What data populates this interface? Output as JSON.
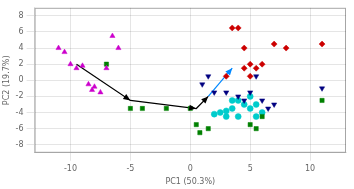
{
  "chart_data": {
    "type": "scatter",
    "xlabel": "PC1 (50.3%)",
    "ylabel": "PC2 (19.7%)",
    "xlim": [
      -13,
      13
    ],
    "ylim": [
      -9,
      9
    ],
    "xticks": [
      -10,
      -5,
      0,
      5,
      10
    ],
    "yticks": [
      -8,
      -6,
      -4,
      -2,
      0,
      2,
      4,
      6,
      8
    ],
    "grid": true,
    "series": [
      {
        "color": "#cc00cc",
        "marker": "triangle",
        "x": [
          -11,
          -10.5,
          -10,
          -9.5,
          -9,
          -8.5,
          -8,
          -7.5,
          -6.5,
          -6,
          -7,
          -8.2
        ],
        "values": [
          4,
          3.5,
          2,
          1.5,
          1.8,
          -0.5,
          -0.8,
          -1.5,
          5.5,
          4,
          1.5,
          -1.2
        ]
      },
      {
        "color": "#008000",
        "marker": "square",
        "x": [
          -7,
          -5,
          -4,
          -2,
          0,
          0.5,
          0.8,
          1.5,
          5,
          5.5,
          6,
          11
        ],
        "values": [
          2,
          -3.5,
          -3.5,
          -3.5,
          -3.5,
          -5.5,
          -6.5,
          -6,
          -5.5,
          -6,
          -4.5,
          -2.5
        ]
      },
      {
        "color": "#000080",
        "marker": "triangle_down",
        "x": [
          1,
          1.5,
          2,
          3,
          4,
          4.5,
          5,
          5.5,
          6,
          6.5,
          7,
          11
        ],
        "values": [
          -0.5,
          0.5,
          -1.5,
          -1.5,
          -2,
          -2.5,
          -1.5,
          0.5,
          -2.5,
          -3.5,
          -3,
          -1
        ]
      },
      {
        "color": "#cc0000",
        "marker": "diamond",
        "x": [
          3.5,
          4,
          4.5,
          5,
          5.5,
          6,
          7,
          8,
          11,
          3,
          4.5,
          5
        ],
        "values": [
          6.5,
          6.5,
          4,
          0.5,
          1.5,
          2,
          4.5,
          4,
          4.5,
          0.5,
          1.5,
          2
        ]
      },
      {
        "color": "#00cccc",
        "marker": "circle",
        "x": [
          2.5,
          3,
          3.5,
          4,
          4.5,
          5,
          5.5,
          6,
          3.5,
          4,
          5,
          5.5,
          3,
          2
        ],
        "values": [
          -4,
          -4.5,
          -3.5,
          -4.5,
          -3,
          -3.5,
          -4.5,
          -4,
          -2.5,
          -2.5,
          -2,
          -3,
          -3.8,
          -4.2
        ]
      },
      {
        "type": "line",
        "color": "#000000",
        "marker": "arrow",
        "x": [
          -9.5,
          -5,
          0.5,
          1.5
        ],
        "values": [
          2,
          -2.5,
          -3.5,
          -2
        ]
      },
      {
        "type": "line",
        "color": "#0088ff",
        "marker": "arrow",
        "x": [
          1.5,
          3.5
        ],
        "values": [
          -2,
          1.5
        ]
      }
    ]
  }
}
